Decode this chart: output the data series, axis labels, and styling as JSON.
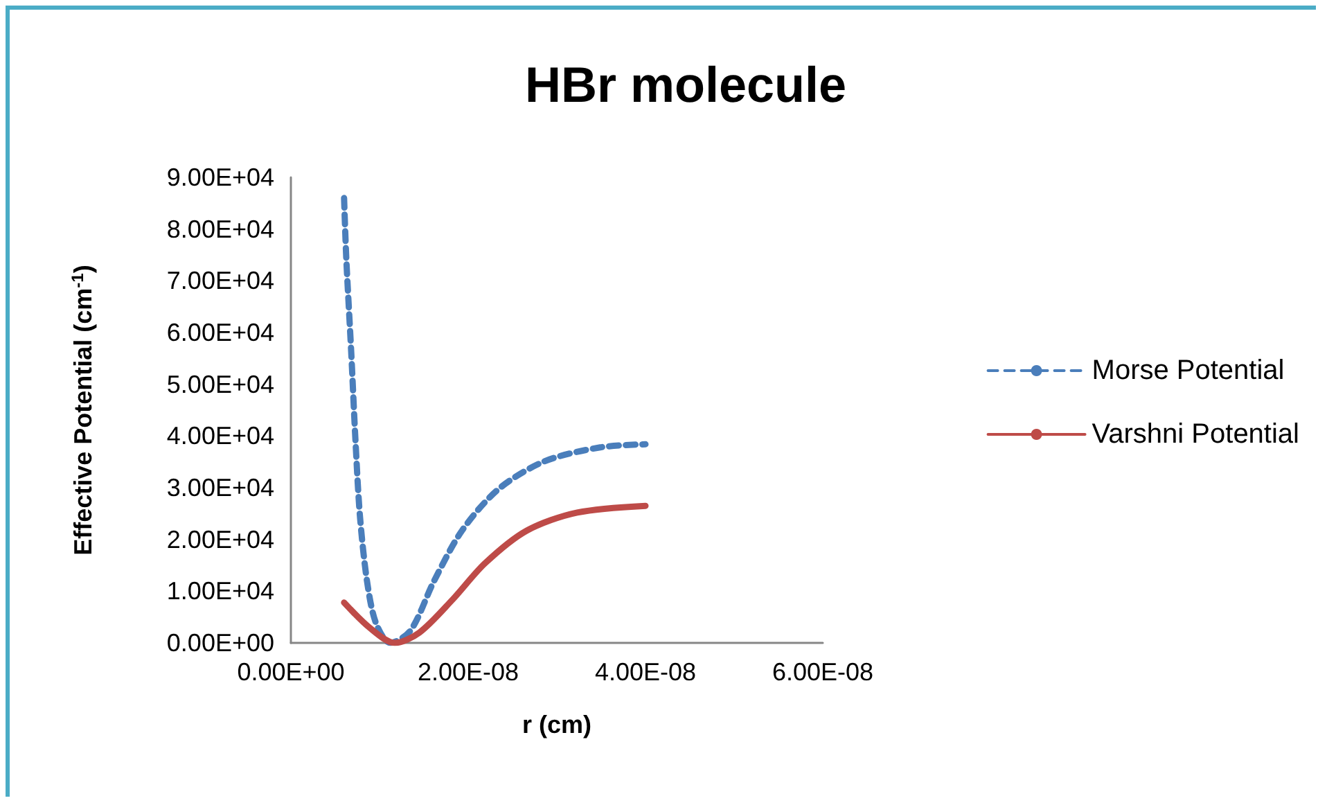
{
  "chart_data": {
    "type": "line",
    "title": "HBr molecule",
    "xlabel": "r (cm)",
    "ylabel": "Effective Potential (cm$^{-1}$)",
    "xlim": [
      0,
      6e-08
    ],
    "xticks": [
      {
        "value": 0,
        "label": "0.00E+00"
      },
      {
        "value": 2e-08,
        "label": "2.00E-08"
      },
      {
        "value": 4e-08,
        "label": "4.00E-08"
      },
      {
        "value": 6e-08,
        "label": "6.00E-08"
      }
    ],
    "ylim": [
      0,
      90000
    ],
    "yticks": [
      {
        "value": 0,
        "label": "0.00E+00"
      },
      {
        "value": 10000,
        "label": "1.00E+04"
      },
      {
        "value": 20000,
        "label": "2.00E+04"
      },
      {
        "value": 30000,
        "label": "3.00E+04"
      },
      {
        "value": 40000,
        "label": "4.00E+04"
      },
      {
        "value": 50000,
        "label": "5.00E+04"
      },
      {
        "value": 60000,
        "label": "6.00E+04"
      },
      {
        "value": 70000,
        "label": "7.00E+04"
      },
      {
        "value": 80000,
        "label": "8.00E+04"
      },
      {
        "value": 90000,
        "label": "9.00E+04"
      }
    ],
    "grid": false,
    "legend": "right",
    "marker": "none",
    "series": [
      {
        "name": "Morse Potential",
        "color": "#4a7ebb",
        "line_style": "dashed",
        "x": [
          6e-09,
          6.25e-09,
          6.8e-09,
          7.3e-09,
          7.8e-09,
          8.6e-09,
          9.6e-09,
          1.12e-08,
          1.35e-08,
          1.61e-08,
          1.93e-08,
          2.34e-08,
          2.86e-08,
          3.49e-08,
          4e-08
        ],
        "values": [
          86000,
          74300,
          56400,
          38600,
          24300,
          11800,
          3800,
          0,
          2400,
          11800,
          21700,
          29700,
          35100,
          37800,
          38400
        ]
      },
      {
        "name": "Varshni Potential",
        "color": "#be4b48",
        "line_style": "solid",
        "x": [
          6e-09,
          8.9e-09,
          1.17e-08,
          1.45e-08,
          1.82e-08,
          2.19e-08,
          2.66e-08,
          3.23e-08,
          4e-08
        ],
        "values": [
          7800,
          2900,
          0,
          2000,
          8300,
          15400,
          21700,
          25200,
          26500
        ]
      }
    ]
  }
}
